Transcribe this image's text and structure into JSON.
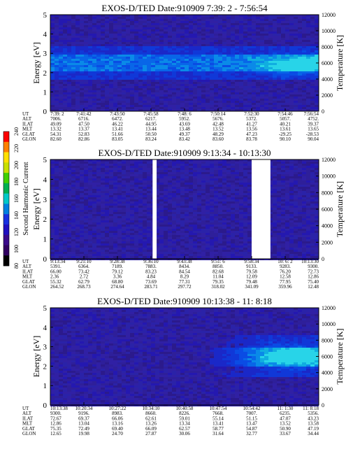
{
  "colorbar": {
    "label": "Second Harmonic Current",
    "ticks": [
      80,
      100,
      120,
      140,
      160,
      180,
      200,
      220,
      240
    ],
    "colors": [
      "#000000",
      "#300060",
      "#3a0a8a",
      "#2010c0",
      "#1830e0",
      "#0080e0",
      "#00c8c8",
      "#00b050",
      "#40d000",
      "#c8e000",
      "#ffe000",
      "#ff8000",
      "#ff0000"
    ]
  },
  "chart_data": [
    {
      "type": "heatmap",
      "title": "EXOS-D/TED   Date:910909   7:39: 2 - 7:56:54",
      "ylabel": "Energy [eV]",
      "ylabel_right": "Temperature [K]",
      "ylim": [
        0,
        5
      ],
      "yticks": [
        0,
        1,
        2,
        3,
        4,
        5
      ],
      "ylim_right": [
        0,
        12000
      ],
      "yticks_right": [
        0,
        2000,
        4000,
        6000,
        8000,
        10000,
        12000
      ],
      "gaps": [],
      "band": {
        "center_ev": 2.5,
        "halfwidth_ev": 0.45,
        "outer_ev": 0.9
      },
      "hot_spot": {
        "x": 0.95,
        "y_ev": 2.4,
        "intensity": 1
      },
      "xticks": [
        "7:39: 2",
        "7:41:42",
        "7:43:50",
        "7:45:58",
        "7:48: 6",
        "7:50:14",
        "7:52:30",
        "7:54:46",
        "7:56:54"
      ],
      "ephem": [
        {
          "name": "UT",
          "values": [
            "7:39: 2",
            "7:41:42",
            "7:43:50",
            "7:45:58",
            "7:48: 6",
            "7:50:14",
            "7:52:30",
            "7:54:46",
            "7:56:54"
          ]
        },
        {
          "name": "ALT",
          "values": [
            "7006.",
            "6716.",
            "6472.",
            "6217.",
            "5952.",
            "5676.",
            "5372.",
            "5057.",
            "4752."
          ]
        },
        {
          "name": "ILAT",
          "values": [
            "49.09",
            "47.50",
            "46.22",
            "44.95",
            "43.69",
            "42.48",
            "41.27",
            "40.21",
            "39.37"
          ]
        },
        {
          "name": "MLT",
          "values": [
            "13.32",
            "13.37",
            "13.41",
            "13.44",
            "13.48",
            "13.52",
            "13.56",
            "13.61",
            "13.65"
          ]
        },
        {
          "name": "GLAT",
          "values": [
            "54.31",
            "52.83",
            "51.66",
            "50.50",
            "49.37",
            "48.29",
            "47.23",
            "-29.25",
            "-28.53"
          ]
        },
        {
          "name": "GLON",
          "values": [
            "82.60",
            "82.86",
            "83.05",
            "83.24",
            "83.42",
            "83.60",
            "83.78",
            "90.10",
            "90.04"
          ]
        }
      ]
    },
    {
      "type": "heatmap",
      "title": "EXOS-D/TED   Date:910909   9:13:34 - 10:13:30",
      "ylabel": "Energy [eV]",
      "ylabel_right": "Temperature [K]",
      "ylim": [
        0,
        5
      ],
      "yticks": [
        0,
        1,
        2,
        3,
        4,
        5
      ],
      "ylim_right": [
        0,
        12000
      ],
      "yticks_right": [
        0,
        2000,
        4000,
        6000,
        8000,
        10000,
        12000
      ],
      "gaps": [
        [
          0.381,
          0.396
        ],
        [
          0.75,
          0.82
        ]
      ],
      "band": null,
      "hot_spot": null,
      "xticks": [
        "9:13:34",
        "9:21:10",
        "9:28:38",
        "9:36:10",
        "9:43:38",
        "9:51: 6",
        "9:58:34",
        "10: 6: 2",
        "10:13:30"
      ],
      "ephem": [
        {
          "name": "UT",
          "values": [
            "9:13:34",
            "9:21:10",
            "9:28:38",
            "9:36:10",
            "9:43:38",
            "9:51: 6",
            "9:58:34",
            "10: 6: 2",
            "10:13:30"
          ]
        },
        {
          "name": "ALT",
          "values": [
            "5391.",
            "6364.",
            "7189.",
            "7883.",
            "8434.",
            "8850.",
            "9133.",
            "9283.",
            "9300."
          ]
        },
        {
          "name": "ILAT",
          "values": [
            "66.00",
            "73.42",
            "79.12",
            "83.23",
            "84.54",
            "82.68",
            "79.58",
            "76.20",
            "72.73"
          ]
        },
        {
          "name": "MLT",
          "values": [
            "2.36",
            "2.72",
            "3.36",
            "4.84",
            "8.29",
            "11.04",
            "12.09",
            "12.58",
            "12.86"
          ]
        },
        {
          "name": "GLAT",
          "values": [
            "55.32",
            "62.79",
            "68.80",
            "73.69",
            "77.31",
            "79.35",
            "79.48",
            "77.95",
            "75.40"
          ]
        },
        {
          "name": "GLON",
          "values": [
            "264.52",
            "268.73",
            "274.64",
            "283.71",
            "297.72",
            "318.02",
            "341.09",
            "359.96",
            "12.48"
          ]
        }
      ]
    },
    {
      "type": "heatmap",
      "title": "EXOS-D/TED   Date:910909   10:13:38 - 11: 8:18",
      "ylabel": "Energy [eV]",
      "ylabel_right": "Temperature [K]",
      "ylim": [
        0,
        5
      ],
      "yticks": [
        0,
        1,
        2,
        3,
        4,
        5
      ],
      "ylim_right": [
        0,
        12000
      ],
      "yticks_right": [
        0,
        2000,
        4000,
        6000,
        8000,
        10000,
        12000
      ],
      "gaps": [],
      "band": {
        "center_ev": 2.5,
        "halfwidth_ev": 0.5,
        "outer_ev": 1.1,
        "start": 0.55
      },
      "hot_spot": {
        "x": 0.93,
        "y_ev": 2.5,
        "intensity": 1
      },
      "xticks": [
        "10:13:38",
        "10:20:34",
        "10:27:22",
        "10:34:10",
        "10:40:58",
        "10:47:54",
        "10:54:42",
        "11: 1:30",
        "11: 8:18"
      ],
      "ephem": [
        {
          "name": "UT",
          "values": [
            "10:13:38",
            "10:20:34",
            "10:27:22",
            "10:34:10",
            "10:40:58",
            "10:47:54",
            "10:54:42",
            "11: 1:30",
            "11: 8:18"
          ]
        },
        {
          "name": "ALT",
          "values": [
            "9300.",
            "9196.",
            "8983.",
            "8660.",
            "8226.",
            "7668.",
            "7007.",
            "6235.",
            "5356."
          ]
        },
        {
          "name": "ILAT",
          "values": [
            "72.67",
            "69.37",
            "66.06",
            "62.61",
            "59.01",
            "55.14",
            "51.15",
            "47.07",
            "43.23"
          ]
        },
        {
          "name": "MLT",
          "values": [
            "12.86",
            "13.04",
            "13.16",
            "13.26",
            "13.34",
            "13.41",
            "13.47",
            "13.52",
            "13.58"
          ]
        },
        {
          "name": "GLAT",
          "values": [
            "75.35",
            "72.49",
            "69.40",
            "66.09",
            "62.57",
            "58.77",
            "54.87",
            "50.90",
            "47.19"
          ]
        },
        {
          "name": "GLON",
          "values": [
            "12.65",
            "19.98",
            "24.70",
            "27.87",
            "30.06",
            "31.64",
            "32.77",
            "33.67",
            "34.44"
          ]
        }
      ]
    }
  ]
}
